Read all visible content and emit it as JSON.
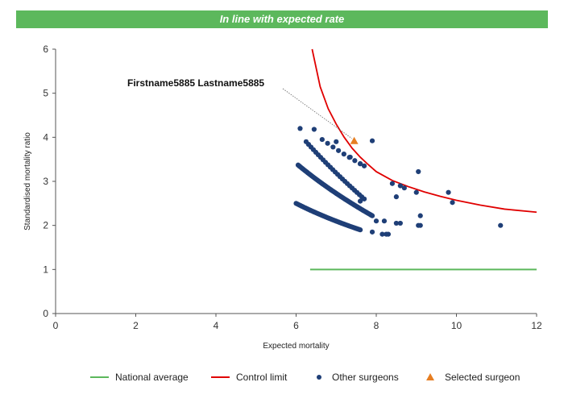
{
  "banner": {
    "text": "In line with expected rate",
    "color": "#5cb85c"
  },
  "chart_data": {
    "type": "scatter",
    "xlabel": "Expected mortality",
    "ylabel": "Standardised mortality ratio",
    "xlim": [
      0,
      12
    ],
    "ylim": [
      0,
      6
    ],
    "xticks": [
      "0",
      "2",
      "4",
      "6",
      "8",
      "10",
      "12"
    ],
    "yticks": [
      "0",
      "1",
      "2",
      "3",
      "4",
      "5",
      "6"
    ],
    "grid": false,
    "legend_position": "bottom",
    "series": [
      {
        "name": "National average",
        "kind": "line",
        "color": "#5cb85c",
        "x": [
          6.35,
          12.0
        ],
        "y": [
          1.0,
          1.0
        ]
      },
      {
        "name": "Control limit",
        "kind": "curve",
        "color": "#e00000",
        "x": [
          6.4,
          6.6,
          6.8,
          7.0,
          7.2,
          7.4,
          7.6,
          7.8,
          8.0,
          8.4,
          8.8,
          9.2,
          9.6,
          10.0,
          10.6,
          11.2,
          12.0
        ],
        "y": [
          6.0,
          5.15,
          4.65,
          4.3,
          4.0,
          3.75,
          3.55,
          3.38,
          3.22,
          3.02,
          2.88,
          2.76,
          2.66,
          2.57,
          2.46,
          2.37,
          2.3
        ]
      },
      {
        "name": "Other surgeons",
        "kind": "points",
        "color": "#1f3f77",
        "arcs": [
          {
            "x_start": 6.0,
            "x_end": 7.6,
            "y_start": 2.5,
            "y_end": 1.9,
            "count": 55
          },
          {
            "x_start": 6.05,
            "x_end": 7.9,
            "y_start": 3.37,
            "y_end": 2.22,
            "count": 70
          },
          {
            "x_start": 6.25,
            "x_end": 7.7,
            "y_start": 3.9,
            "y_end": 2.6,
            "count": 25
          },
          {
            "x_start": 6.65,
            "x_end": 7.6,
            "y_start": 3.95,
            "y_end": 3.4,
            "count": 8
          }
        ],
        "x": [
          6.1,
          6.45,
          7.0,
          7.35,
          7.6,
          7.7,
          7.9,
          8.4,
          8.5,
          8.6,
          8.7,
          9.0,
          9.05,
          9.1,
          9.8,
          9.9,
          9.05,
          9.1,
          8.2,
          8.15,
          8.25,
          8.3,
          7.9,
          8.0,
          8.5,
          8.6,
          11.1,
          7.6
        ],
        "y": [
          4.2,
          4.18,
          3.9,
          3.55,
          3.4,
          3.35,
          3.92,
          2.95,
          2.65,
          2.9,
          2.85,
          2.75,
          3.22,
          2.22,
          2.75,
          2.52,
          2.0,
          2.0,
          2.1,
          1.8,
          1.8,
          1.8,
          1.85,
          2.1,
          2.05,
          2.05,
          2.0,
          2.55
        ]
      },
      {
        "name": "Selected surgeon",
        "kind": "point",
        "color": "#e67e22",
        "x": [
          7.45
        ],
        "y": [
          3.92
        ],
        "label": "Firstname5885 Lastname5885"
      }
    ]
  },
  "legend": {
    "national": "National average",
    "control": "Control limit",
    "others": "Other surgeons",
    "selected": "Selected surgeon"
  }
}
